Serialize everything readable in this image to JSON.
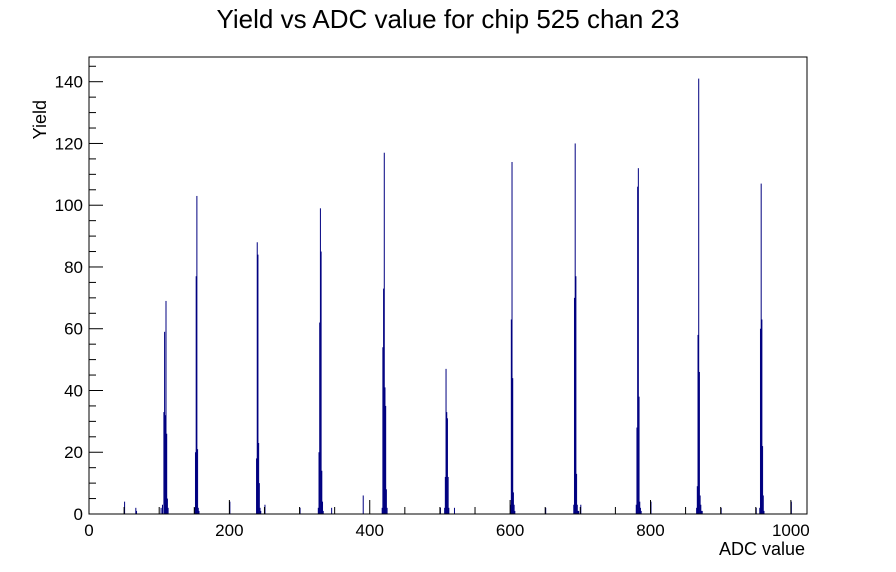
{
  "chart_data": {
    "type": "bar",
    "title": "Yield vs ADC value for chip 525 chan 23",
    "xlabel": "ADC value",
    "ylabel": "Yield",
    "xlim": [
      0,
      1023
    ],
    "ylim": [
      0,
      148
    ],
    "x_ticks": [
      "0",
      "200",
      "400",
      "600",
      "800",
      "1000"
    ],
    "y_ticks": [
      "0",
      "20",
      "40",
      "60",
      "80",
      "100",
      "120",
      "140"
    ],
    "bar_color": "#000080",
    "grid": false,
    "legend": "none",
    "series": [
      {
        "x": [
          50,
          66,
          67,
          102,
          104,
          106,
          107,
          108,
          109,
          110,
          111,
          112,
          150,
          151,
          152,
          153,
          154,
          155,
          156,
          200,
          238,
          239,
          240,
          241,
          242,
          243,
          244,
          250,
          300,
          326,
          327,
          328,
          329,
          330,
          331,
          332,
          333,
          345,
          390,
          417,
          418,
          419,
          420,
          421,
          422,
          423,
          424,
          500,
          506,
          507,
          508,
          509,
          510,
          511,
          512,
          520,
          600,
          601,
          602,
          603,
          604,
          605,
          606,
          650,
          690,
          691,
          692,
          693,
          694,
          695,
          696,
          697,
          700,
          779,
          780,
          781,
          782,
          783,
          784,
          785,
          786,
          800,
          865,
          866,
          867,
          868,
          869,
          870,
          871,
          872,
          873,
          900,
          950,
          955,
          956,
          957,
          958,
          959,
          960,
          961,
          1000
        ],
        "y": [
          4,
          2,
          1,
          2,
          3,
          33,
          59,
          32,
          69,
          26,
          5,
          2,
          2,
          20,
          77,
          103,
          21,
          2,
          1,
          4,
          18,
          88,
          84,
          23,
          10,
          2,
          1,
          3,
          2,
          2,
          20,
          62,
          99,
          85,
          14,
          4,
          1,
          2,
          6,
          2,
          54,
          73,
          117,
          41,
          35,
          8,
          2,
          2,
          2,
          12,
          47,
          33,
          31,
          12,
          2,
          2,
          3,
          63,
          114,
          44,
          7,
          3,
          1,
          2,
          3,
          70,
          120,
          77,
          13,
          3,
          1,
          1,
          3,
          3,
          28,
          106,
          112,
          38,
          4,
          2,
          1,
          4,
          2,
          9,
          58,
          141,
          46,
          6,
          3,
          1,
          1,
          2,
          2,
          2,
          60,
          107,
          63,
          22,
          6,
          1,
          4
        ]
      }
    ]
  }
}
